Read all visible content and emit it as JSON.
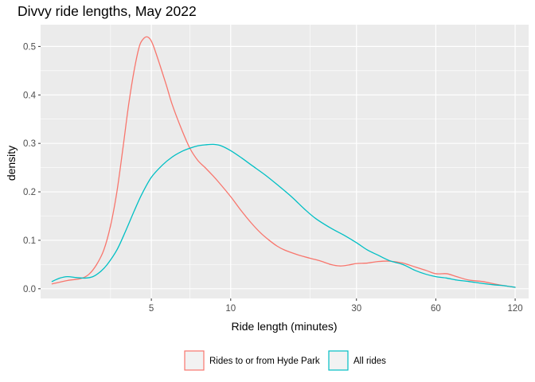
{
  "chart_data": {
    "type": "line",
    "title": "Divvy ride lengths, May 2022",
    "xlabel": "Ride length (minutes)",
    "ylabel": "density",
    "x_scale": "log",
    "xlim": [
      1.9,
      135
    ],
    "ylim": [
      -0.02,
      0.545
    ],
    "x_ticks": [
      5,
      10,
      30,
      60,
      120
    ],
    "x_tick_labels": [
      "5",
      "10",
      "30",
      "60",
      "120"
    ],
    "x_minor_ticks": [
      3.5,
      7,
      20,
      85
    ],
    "y_ticks": [
      0,
      0.1,
      0.2,
      0.3,
      0.4,
      0.5
    ],
    "y_tick_labels": [
      "0.0",
      "0.1",
      "0.2",
      "0.3",
      "0.4",
      "0.5"
    ],
    "grid": true,
    "legend_position": "bottom",
    "series": [
      {
        "name": "Rides to or from Hyde Park",
        "color": "#F8766D",
        "points": [
          [
            2.1,
            0.01
          ],
          [
            2.4,
            0.017
          ],
          [
            2.7,
            0.021
          ],
          [
            2.9,
            0.03
          ],
          [
            3.1,
            0.05
          ],
          [
            3.3,
            0.08
          ],
          [
            3.5,
            0.13
          ],
          [
            3.7,
            0.2
          ],
          [
            3.9,
            0.29
          ],
          [
            4.1,
            0.38
          ],
          [
            4.3,
            0.45
          ],
          [
            4.5,
            0.5
          ],
          [
            4.65,
            0.515
          ],
          [
            4.8,
            0.52
          ],
          [
            4.95,
            0.515
          ],
          [
            5.1,
            0.5
          ],
          [
            5.4,
            0.46
          ],
          [
            5.7,
            0.42
          ],
          [
            6.0,
            0.38
          ],
          [
            6.5,
            0.33
          ],
          [
            7.0,
            0.29
          ],
          [
            7.5,
            0.265
          ],
          [
            8.0,
            0.25
          ],
          [
            8.5,
            0.235
          ],
          [
            9.0,
            0.22
          ],
          [
            10.0,
            0.19
          ],
          [
            11.0,
            0.16
          ],
          [
            12.0,
            0.135
          ],
          [
            13.0,
            0.115
          ],
          [
            14.0,
            0.1
          ],
          [
            15.0,
            0.088
          ],
          [
            16.0,
            0.08
          ],
          [
            18.0,
            0.07
          ],
          [
            20.0,
            0.063
          ],
          [
            22.0,
            0.057
          ],
          [
            24.0,
            0.05
          ],
          [
            26.0,
            0.047
          ],
          [
            28.0,
            0.049
          ],
          [
            30.0,
            0.052
          ],
          [
            33.0,
            0.053
          ],
          [
            36.0,
            0.056
          ],
          [
            40.0,
            0.057
          ],
          [
            45.0,
            0.053
          ],
          [
            50.0,
            0.045
          ],
          [
            55.0,
            0.038
          ],
          [
            60.0,
            0.031
          ],
          [
            66.0,
            0.031
          ],
          [
            72.0,
            0.025
          ],
          [
            80.0,
            0.018
          ],
          [
            90.0,
            0.015
          ],
          [
            100.0,
            0.01
          ],
          [
            110.0,
            0.006
          ],
          [
            120.0,
            0.003
          ]
        ]
      },
      {
        "name": "All rides",
        "color": "#00BFC4",
        "points": [
          [
            2.1,
            0.015
          ],
          [
            2.25,
            0.022
          ],
          [
            2.4,
            0.025
          ],
          [
            2.6,
            0.023
          ],
          [
            2.8,
            0.022
          ],
          [
            3.0,
            0.025
          ],
          [
            3.2,
            0.035
          ],
          [
            3.4,
            0.05
          ],
          [
            3.7,
            0.08
          ],
          [
            4.0,
            0.12
          ],
          [
            4.3,
            0.16
          ],
          [
            4.6,
            0.195
          ],
          [
            5.0,
            0.23
          ],
          [
            5.5,
            0.255
          ],
          [
            6.0,
            0.272
          ],
          [
            6.5,
            0.283
          ],
          [
            7.0,
            0.29
          ],
          [
            7.5,
            0.295
          ],
          [
            8.0,
            0.297
          ],
          [
            8.6,
            0.298
          ],
          [
            9.2,
            0.295
          ],
          [
            10.0,
            0.285
          ],
          [
            11.0,
            0.27
          ],
          [
            12.0,
            0.255
          ],
          [
            13.5,
            0.235
          ],
          [
            15.0,
            0.215
          ],
          [
            17.0,
            0.19
          ],
          [
            19.0,
            0.165
          ],
          [
            21.0,
            0.145
          ],
          [
            24.0,
            0.125
          ],
          [
            27.0,
            0.11
          ],
          [
            30.0,
            0.095
          ],
          [
            33.0,
            0.08
          ],
          [
            36.0,
            0.07
          ],
          [
            40.0,
            0.058
          ],
          [
            45.0,
            0.05
          ],
          [
            50.0,
            0.038
          ],
          [
            55.0,
            0.03
          ],
          [
            60.0,
            0.025
          ],
          [
            66.0,
            0.022
          ],
          [
            72.0,
            0.018
          ],
          [
            80.0,
            0.015
          ],
          [
            90.0,
            0.011
          ],
          [
            100.0,
            0.008
          ],
          [
            110.0,
            0.006
          ],
          [
            120.0,
            0.003
          ]
        ]
      }
    ]
  }
}
